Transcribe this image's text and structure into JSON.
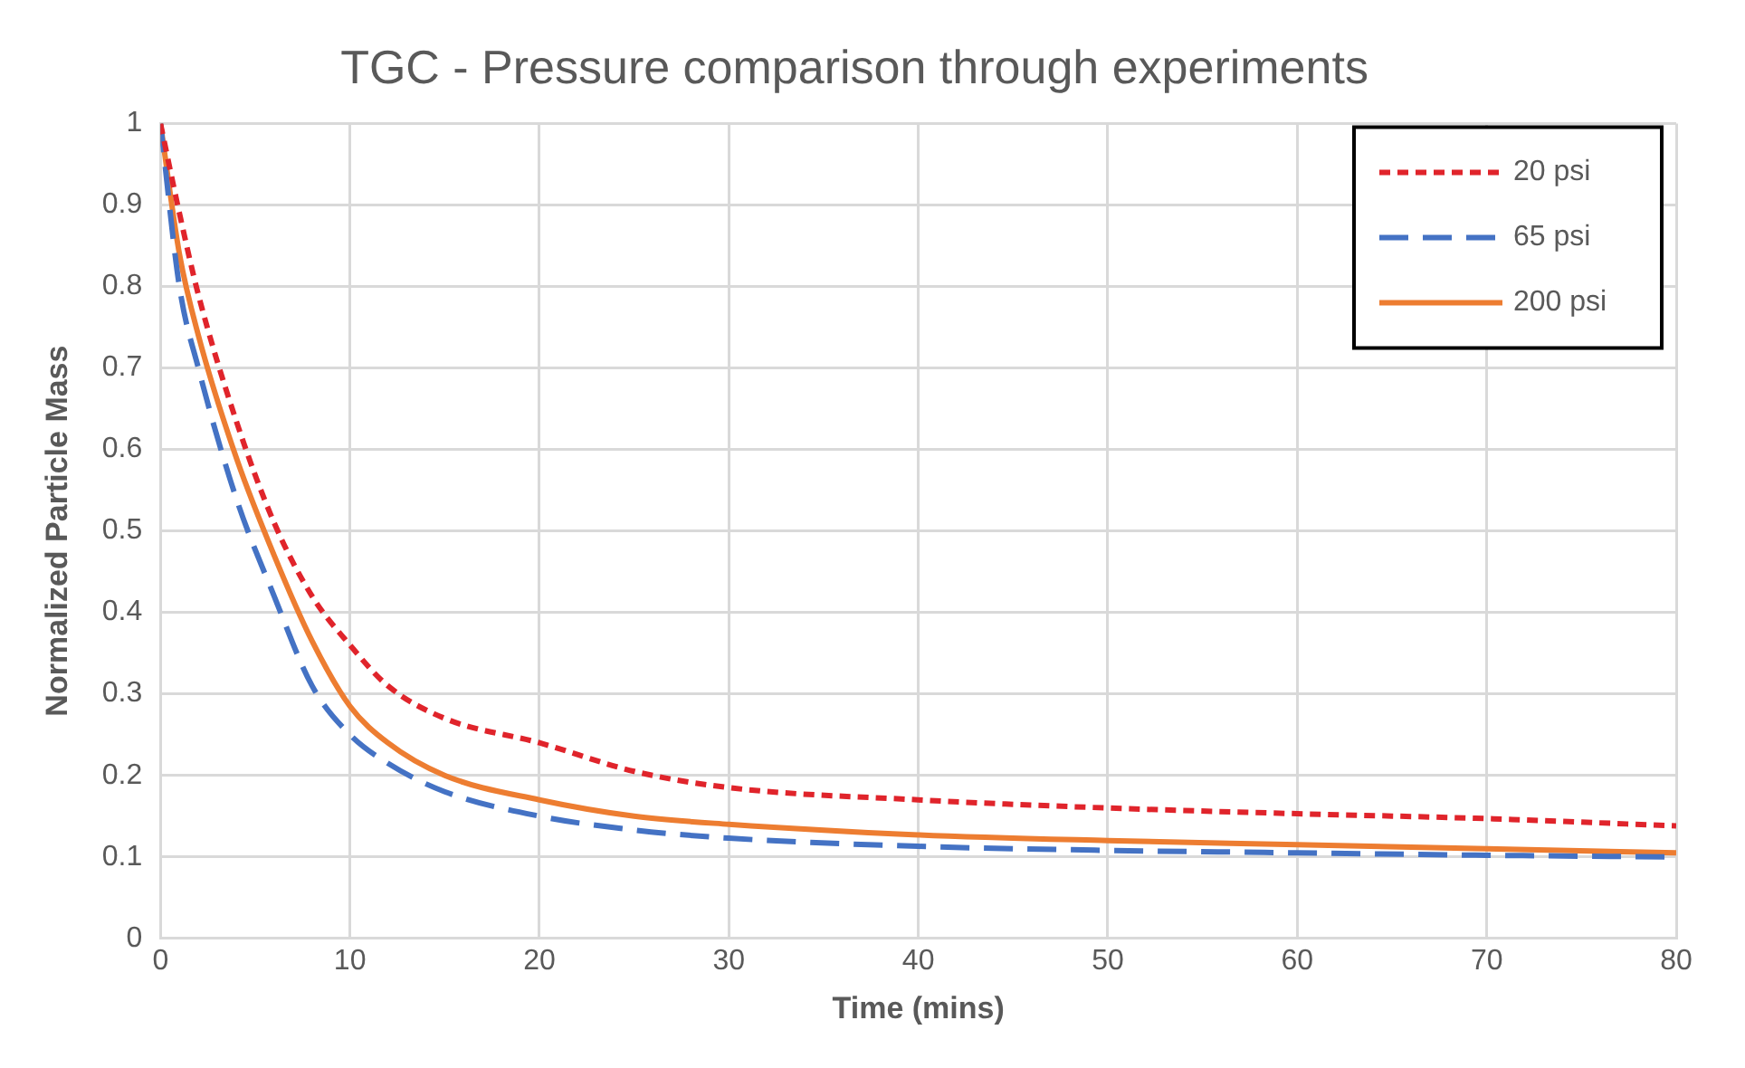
{
  "chart_data": {
    "type": "line",
    "title": "TGC - Pressure comparison through experiments",
    "xlabel": "Time (mins)",
    "ylabel": "Normalized Particle Mass",
    "xlim": [
      0,
      80
    ],
    "xticks": [
      0,
      10,
      20,
      30,
      40,
      50,
      60,
      70,
      80
    ],
    "ylim": [
      0,
      1
    ],
    "yticks": [
      0,
      0.1,
      0.2,
      0.3,
      0.4,
      0.5,
      0.6,
      0.7,
      0.8,
      0.9,
      1
    ],
    "grid": true,
    "legend": "top right",
    "marker": "none",
    "series": [
      {
        "name": "20 psi",
        "color": "#e0242b",
        "line_style": "dotted",
        "x": [
          0,
          1,
          2,
          4,
          6,
          8,
          10,
          12,
          15,
          20,
          25,
          30,
          40,
          50,
          60,
          70,
          80
        ],
        "values": [
          1,
          0.89,
          0.79,
          0.635,
          0.51,
          0.42,
          0.36,
          0.31,
          0.27,
          0.24,
          0.205,
          0.185,
          0.17,
          0.16,
          0.153,
          0.147,
          0.138
        ]
      },
      {
        "name": "65 psi",
        "color": "#4472c4",
        "line_style": "dashed",
        "x": [
          0,
          1,
          2,
          4,
          6,
          8,
          10,
          12,
          15,
          20,
          25,
          30,
          40,
          50,
          60,
          70,
          80
        ],
        "values": [
          1,
          0.8,
          0.7,
          0.54,
          0.42,
          0.31,
          0.25,
          0.215,
          0.18,
          0.15,
          0.133,
          0.123,
          0.113,
          0.108,
          0.105,
          0.102,
          0.1
        ]
      },
      {
        "name": "200 psi",
        "color": "#ed7d31",
        "line_style": "solid",
        "x": [
          0,
          1,
          2,
          4,
          6,
          8,
          10,
          12,
          15,
          20,
          25,
          30,
          40,
          50,
          60,
          70,
          80
        ],
        "values": [
          1,
          0.84,
          0.74,
          0.59,
          0.47,
          0.365,
          0.285,
          0.24,
          0.2,
          0.17,
          0.15,
          0.14,
          0.127,
          0.12,
          0.115,
          0.11,
          0.105
        ]
      }
    ]
  }
}
